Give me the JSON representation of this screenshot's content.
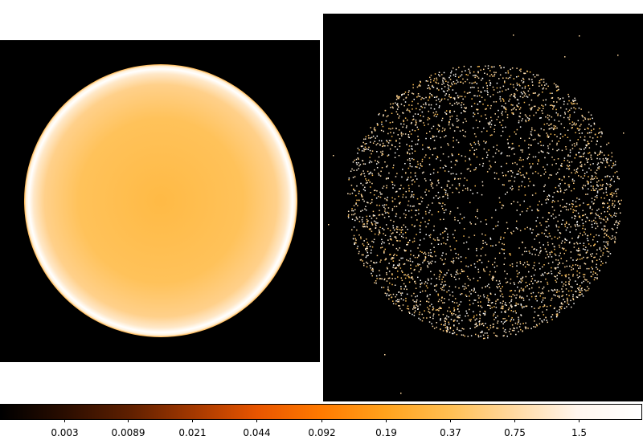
{
  "colors": {
    "background": "#ffffff",
    "panel_background": "#000000",
    "colormap": [
      "#000000",
      "#2a0d00",
      "#5e1f00",
      "#a33800",
      "#e85500",
      "#ff7a00",
      "#ffa21c",
      "#ffbf52",
      "#ffd9a0",
      "#fff6ee",
      "#ffffff"
    ]
  },
  "colorbar": {
    "scale": "log",
    "ticks": [
      "0.003",
      "0.0089",
      "0.021",
      "0.044",
      "0.092",
      "0.19",
      "0.37",
      "0.75",
      "1.5"
    ]
  }
}
